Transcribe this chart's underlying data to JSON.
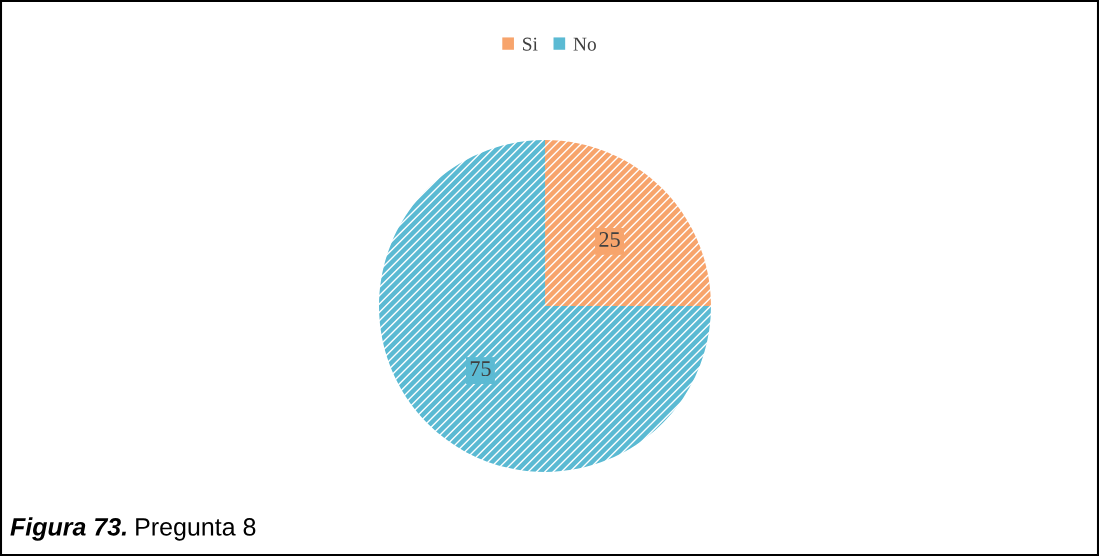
{
  "chart_data": {
    "type": "pie",
    "categories": [
      "Si",
      "No"
    ],
    "values": [
      25,
      75
    ],
    "colors": [
      "#f7a46c",
      "#5bbad3"
    ],
    "data_labels": true,
    "legend": "top",
    "annotations": [
      "Figura 73.",
      "Pregunta 8"
    ]
  }
}
